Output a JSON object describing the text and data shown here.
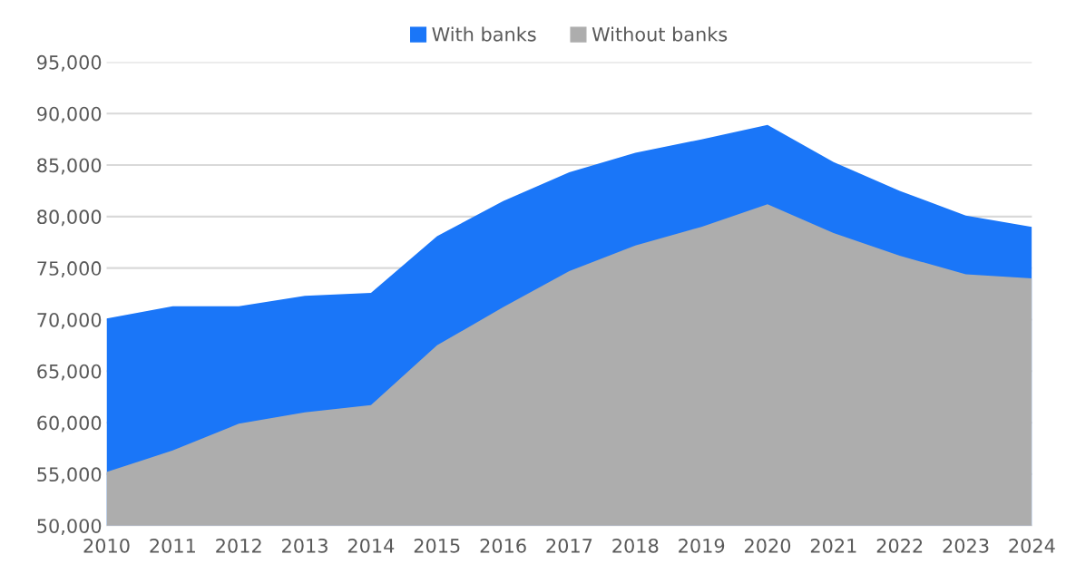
{
  "chart_data": {
    "type": "area",
    "x": [
      2010,
      2011,
      2012,
      2013,
      2014,
      2015,
      2016,
      2017,
      2018,
      2019,
      2020,
      2021,
      2022,
      2023,
      2024
    ],
    "series": [
      {
        "name": "With banks",
        "color": "#1a76f8",
        "values": [
          70100,
          71300,
          71300,
          72300,
          72600,
          78100,
          81500,
          84300,
          86200,
          87500,
          88900,
          85300,
          82500,
          80100,
          79000
        ]
      },
      {
        "name": "Without banks",
        "color": "#adadad",
        "values": [
          55200,
          57300,
          59900,
          61000,
          61700,
          67500,
          71200,
          74700,
          77200,
          79000,
          81200,
          78400,
          76200,
          74400,
          74000
        ]
      }
    ],
    "xlim": [
      2010,
      2024
    ],
    "xticks": [
      2010,
      2011,
      2012,
      2013,
      2014,
      2015,
      2016,
      2017,
      2018,
      2019,
      2020,
      2021,
      2022,
      2023,
      2024
    ],
    "ylim": [
      50000,
      95000
    ],
    "yticks": [
      {
        "value": 50000,
        "label": "50,000"
      },
      {
        "value": 55000,
        "label": "55,000"
      },
      {
        "value": 60000,
        "label": "60,000"
      },
      {
        "value": 65000,
        "label": "65,000"
      },
      {
        "value": 70000,
        "label": "70,000"
      },
      {
        "value": 75000,
        "label": "75,000"
      },
      {
        "value": 80000,
        "label": "80,000"
      },
      {
        "value": 85000,
        "label": "85,000"
      },
      {
        "value": 90000,
        "label": "90,000"
      },
      {
        "value": 95000,
        "label": "95,000"
      }
    ],
    "grid": "y",
    "legend": "top"
  }
}
